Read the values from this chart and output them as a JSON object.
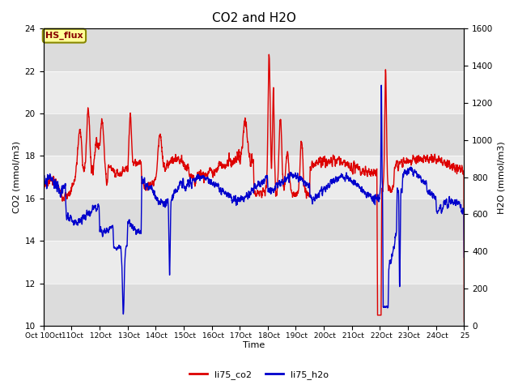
{
  "title": "CO2 and H2O",
  "ylabel_left": "CO2 (mmol/m3)",
  "ylabel_right": "H2O (mmol/m3)",
  "xlabel": "Time",
  "ylim_left": [
    10,
    24
  ],
  "ylim_right": [
    0,
    1600
  ],
  "yticks_left": [
    10,
    12,
    14,
    16,
    18,
    20,
    22,
    24
  ],
  "yticks_right": [
    0,
    200,
    400,
    600,
    800,
    1000,
    1200,
    1400,
    1600
  ],
  "color_co2": "#dd0000",
  "color_h2o": "#0000cc",
  "legend_co2": "li75_co2",
  "legend_h2o": "li75_h2o",
  "hs_flux_label": "HS_flux",
  "hs_flux_text_color": "#880000",
  "hs_flux_bg": "#ffff99",
  "hs_flux_edge": "#888800",
  "bg_color": "#e8e8e8",
  "plot_bg": "#f2f2f2",
  "title_fontsize": 11,
  "axis_label_fontsize": 8,
  "tick_fontsize": 7.5,
  "legend_fontsize": 8,
  "linewidth_co2": 1.0,
  "linewidth_h2o": 1.0
}
